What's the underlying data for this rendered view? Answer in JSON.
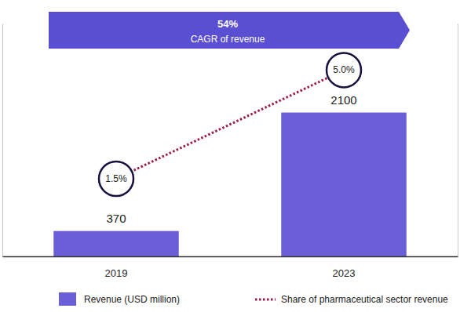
{
  "chart_data": {
    "type": "bar",
    "annotations": [
      "54%",
      "CAGR of revenue"
    ],
    "categories": [
      "2019",
      "2023"
    ],
    "series": [
      {
        "name": "Revenue (USD million)",
        "type": "bar",
        "color": "#6a5fd6",
        "values": [
          370,
          2100
        ]
      },
      {
        "name": "Share of pharmaceutical sector revenue",
        "type": "line",
        "axis": "y2",
        "color": "#9a1b4b",
        "line_style": "dotted",
        "marker": "circle",
        "values": [
          1.5,
          5.0
        ],
        "value_labels": [
          "1.5%",
          "5.0%"
        ]
      }
    ],
    "ylim": [
      0,
      3400
    ],
    "y2lim": [
      -1,
      6.5
    ],
    "data_labels": true,
    "tick_labels": "x",
    "grid": false,
    "legend": "bottom"
  }
}
